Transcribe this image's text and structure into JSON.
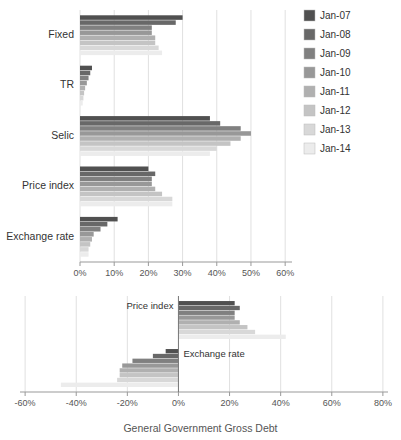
{
  "chart_data": [
    {
      "type": "bar",
      "orientation": "horizontal",
      "grid": true,
      "legend": "right",
      "tick_labels": true,
      "categories": [
        "Fixed",
        "TR",
        "Selic",
        "Price index",
        "Exchange rate"
      ],
      "series": [
        {
          "name": "Jan-07",
          "color": "#505050",
          "values": [
            30,
            3.5,
            38,
            20,
            11
          ]
        },
        {
          "name": "Jan-08",
          "color": "#686868",
          "values": [
            28,
            3.0,
            41,
            22,
            8
          ]
        },
        {
          "name": "Jan-09",
          "color": "#808080",
          "values": [
            21,
            2.5,
            47,
            21,
            6
          ]
        },
        {
          "name": "Jan-10",
          "color": "#989898",
          "values": [
            21,
            2.0,
            50,
            21,
            4
          ]
        },
        {
          "name": "Jan-11",
          "color": "#b0b0b0",
          "values": [
            22,
            1.5,
            47,
            22,
            3.5
          ]
        },
        {
          "name": "Jan-12",
          "color": "#c4c4c4",
          "values": [
            22,
            1.2,
            44,
            24,
            3.0
          ]
        },
        {
          "name": "Jan-13",
          "color": "#d8d8d8",
          "values": [
            23,
            1.0,
            40,
            27,
            2.5
          ]
        },
        {
          "name": "Jan-14",
          "color": "#ececec",
          "values": [
            24,
            0.8,
            38,
            27,
            2.5
          ]
        }
      ],
      "xlim": [
        0,
        62
      ],
      "xticks": [
        {
          "value": 0,
          "label": "0%"
        },
        {
          "value": 10,
          "label": "10%"
        },
        {
          "value": 20,
          "label": "20%"
        },
        {
          "value": 30,
          "label": "30%"
        },
        {
          "value": 40,
          "label": "40%"
        },
        {
          "value": 50,
          "label": "50%"
        },
        {
          "value": 60,
          "label": "60%"
        }
      ]
    },
    {
      "type": "bar",
      "orientation": "horizontal",
      "grid": true,
      "legend": false,
      "tick_labels": "x",
      "title": "General Government Gross Debt",
      "categories": [
        "Price index",
        "Exchange rate"
      ],
      "series": [
        {
          "name": "Jan-07",
          "color": "#505050",
          "values": [
            22,
            -5
          ]
        },
        {
          "name": "Jan-08",
          "color": "#686868",
          "values": [
            24,
            -10
          ]
        },
        {
          "name": "Jan-09",
          "color": "#808080",
          "values": [
            22,
            -18
          ]
        },
        {
          "name": "Jan-10",
          "color": "#989898",
          "values": [
            22,
            -22
          ]
        },
        {
          "name": "Jan-11",
          "color": "#b0b0b0",
          "values": [
            24,
            -23
          ]
        },
        {
          "name": "Jan-12",
          "color": "#c4c4c4",
          "values": [
            27,
            -23
          ]
        },
        {
          "name": "Jan-13",
          "color": "#d8d8d8",
          "values": [
            30,
            -24
          ]
        },
        {
          "name": "Jan-14",
          "color": "#ececec",
          "values": [
            42,
            -46
          ]
        }
      ],
      "xlim": [
        -62,
        82
      ],
      "xticks": [
        {
          "value": -60,
          "label": "-60%"
        },
        {
          "value": -40,
          "label": "-40%"
        },
        {
          "value": -20,
          "label": "-20%"
        },
        {
          "value": 0,
          "label": "0%"
        },
        {
          "value": 20,
          "label": "20%"
        },
        {
          "value": 40,
          "label": "40%"
        },
        {
          "value": 60,
          "label": "60%"
        },
        {
          "value": 80,
          "label": "80%"
        }
      ]
    }
  ]
}
